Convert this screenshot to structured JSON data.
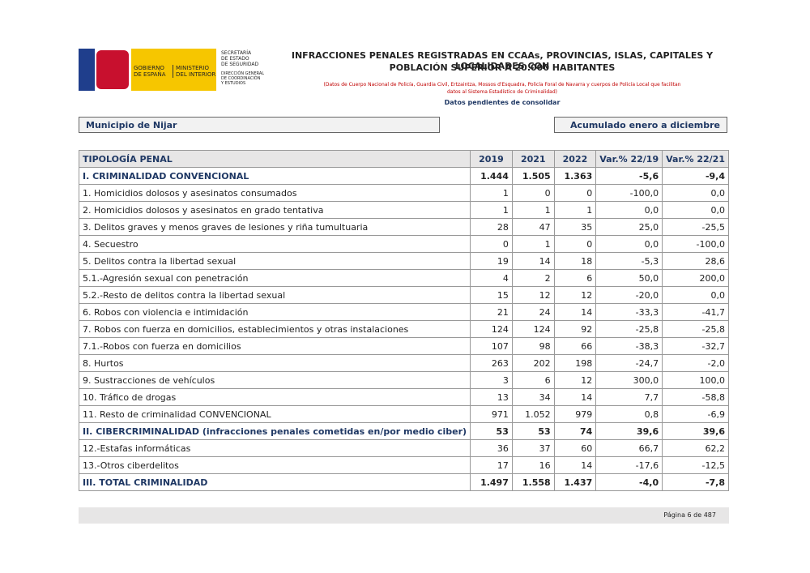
{
  "header": {
    "logo": {
      "gobierno": [
        "GOBIERNO",
        "DE ESPAÑA"
      ],
      "ministerio": [
        "MINISTERIO",
        "DEL INTERIOR"
      ],
      "secretaria": [
        "SECRETARÍA",
        "DE ESTADO",
        "DE SEGURIDAD"
      ],
      "direccion": [
        "DIRECCIÓN GENERAL",
        "DE COORDINACIÓN",
        "Y ESTUDIOS"
      ]
    },
    "title": [
      "INFRACCIONES PENALES REGISTRADAS EN CCAAs, PROVINCIAS, ISLAS, CAPITALES Y LOCALIDADES CON",
      "POBLACIÓN SUPERIOR A 20.000 HABITANTES"
    ],
    "note": [
      "(Datos de Cuerpo Nacional de Policía, Guardia Civil, Ertzaintza, Mossos d'Esquadra, Policía Foral de Navarra y cuerpos de Policía Local que facilitan",
      "datos al Sistema Estadístico de Criminalidad)"
    ],
    "pending": "Datos pendientes de consolidar"
  },
  "filters": {
    "municipio": "Municipio de Nijar",
    "periodo": "Acumulado enero a diciembre"
  },
  "table": {
    "columns": [
      "TIPOLOGÍA PENAL",
      "2019",
      "2021",
      "2022",
      "Var.% 22/19",
      "Var.% 22/21"
    ],
    "rows": [
      {
        "cells": [
          "I. CRIMINALIDAD CONVENCIONAL",
          "1.444",
          "1.505",
          "1.363",
          "-5,6",
          "-9,4"
        ],
        "bold": true
      },
      {
        "cells": [
          "1. Homicidios dolosos y asesinatos consumados",
          "1",
          "0",
          "0",
          "-100,0",
          "0,0"
        ]
      },
      {
        "cells": [
          "2. Homicidios dolosos y asesinatos en grado tentativa",
          "1",
          "1",
          "1",
          "0,0",
          "0,0"
        ]
      },
      {
        "cells": [
          "3. Delitos graves y menos graves de lesiones y riña tumultuaria",
          "28",
          "47",
          "35",
          "25,0",
          "-25,5"
        ]
      },
      {
        "cells": [
          "4. Secuestro",
          "0",
          "1",
          "0",
          "0,0",
          "-100,0"
        ]
      },
      {
        "cells": [
          "5. Delitos contra la libertad sexual",
          "19",
          "14",
          "18",
          "-5,3",
          "28,6"
        ]
      },
      {
        "cells": [
          "5.1.-Agresión sexual con penetración",
          "4",
          "2",
          "6",
          "50,0",
          "200,0"
        ]
      },
      {
        "cells": [
          "5.2.-Resto de delitos contra la libertad sexual",
          "15",
          "12",
          "12",
          "-20,0",
          "0,0"
        ]
      },
      {
        "cells": [
          "6. Robos con violencia e intimidación",
          "21",
          "24",
          "14",
          "-33,3",
          "-41,7"
        ]
      },
      {
        "cells": [
          "7. Robos con fuerza en domicilios, establecimientos y otras instalaciones",
          "124",
          "124",
          "92",
          "-25,8",
          "-25,8"
        ]
      },
      {
        "cells": [
          "7.1.-Robos con fuerza en domicilios",
          "107",
          "98",
          "66",
          "-38,3",
          "-32,7"
        ]
      },
      {
        "cells": [
          "8. Hurtos",
          "263",
          "202",
          "198",
          "-24,7",
          "-2,0"
        ]
      },
      {
        "cells": [
          "9. Sustracciones de vehículos",
          "3",
          "6",
          "12",
          "300,0",
          "100,0"
        ]
      },
      {
        "cells": [
          "10. Tráfico de drogas",
          "13",
          "34",
          "14",
          "7,7",
          "-58,8"
        ]
      },
      {
        "cells": [
          "11. Resto de criminalidad CONVENCIONAL",
          "971",
          "1.052",
          "979",
          "0,8",
          "-6,9"
        ]
      },
      {
        "cells": [
          "II. CIBERCRIMINALIDAD (infracciones penales cometidas en/por medio ciber)",
          "53",
          "53",
          "74",
          "39,6",
          "39,6"
        ],
        "bold": true
      },
      {
        "cells": [
          "12.-Estafas informáticas",
          "36",
          "37",
          "60",
          "66,7",
          "62,2"
        ]
      },
      {
        "cells": [
          "13.-Otros ciberdelitos",
          "17",
          "16",
          "14",
          "-17,6",
          "-12,5"
        ]
      },
      {
        "cells": [
          "III. TOTAL CRIMINALIDAD",
          "1.497",
          "1.558",
          "1.437",
          "-4,0",
          "-7,8"
        ],
        "bold": true
      }
    ]
  },
  "footer": {
    "page": "Página 6 de 487"
  }
}
